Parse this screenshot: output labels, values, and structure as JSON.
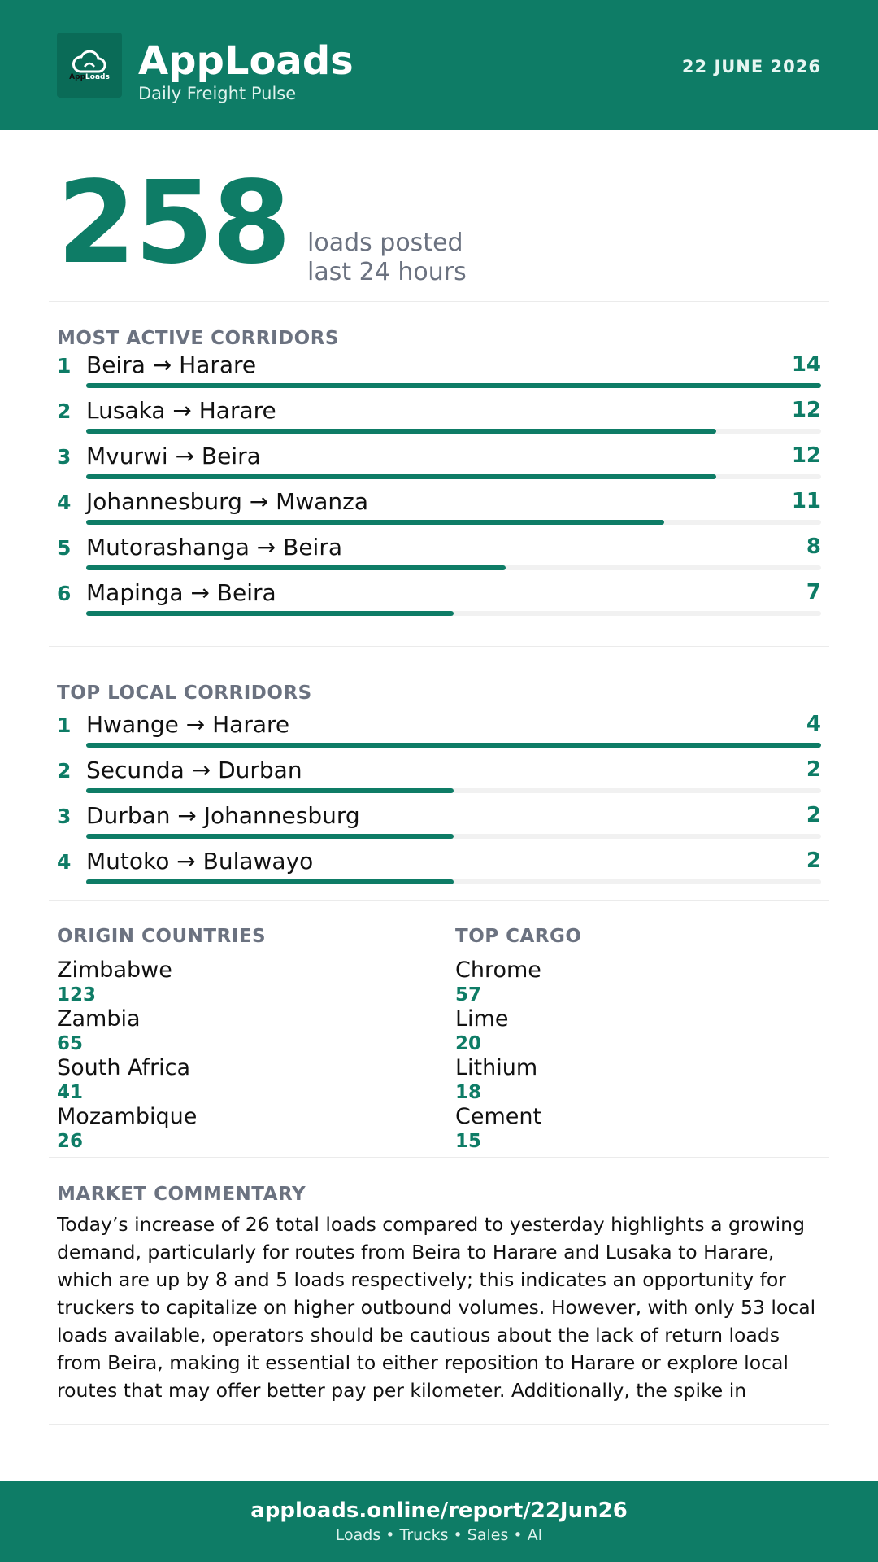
{
  "header": {
    "brand": "AppLoads",
    "subtitle": "Daily Freight Pulse",
    "date": "22 JUNE 2026",
    "logo_text_a": "App",
    "logo_text_b": "Loads",
    "logo_icon": "cloud-icon",
    "accent_color": "#0e7c66"
  },
  "hero": {
    "value": "258",
    "caption_line1": "loads posted",
    "caption_line2": "last 24 hours"
  },
  "active": {
    "title": "MOST ACTIVE CORRIDORS",
    "items": [
      {
        "rank": "1",
        "route": "Beira → Harare",
        "count": "14",
        "share": 1.0
      },
      {
        "rank": "2",
        "route": "Lusaka → Harare",
        "count": "12",
        "share": 0.857
      },
      {
        "rank": "3",
        "route": "Mvurwi → Beira",
        "count": "12",
        "share": 0.857
      },
      {
        "rank": "4",
        "route": "Johannesburg → Mwanza",
        "count": "11",
        "share": 0.786
      },
      {
        "rank": "5",
        "route": "Mutorashanga → Beira",
        "count": "8",
        "share": 0.571
      },
      {
        "rank": "6",
        "route": "Mapinga → Beira",
        "count": "7",
        "share": 0.5
      }
    ]
  },
  "local": {
    "title": "TOP LOCAL CORRIDORS",
    "items": [
      {
        "rank": "1",
        "route": "Hwange → Harare",
        "count": "4",
        "share": 1.0
      },
      {
        "rank": "2",
        "route": "Secunda → Durban",
        "count": "2",
        "share": 0.5
      },
      {
        "rank": "3",
        "route": "Durban → Johannesburg",
        "count": "2",
        "share": 0.5
      },
      {
        "rank": "4",
        "route": "Mutoko → Bulawayo",
        "count": "2",
        "share": 0.5
      }
    ]
  },
  "origins": {
    "title": "ORIGIN COUNTRIES",
    "items": [
      {
        "label": "Zimbabwe",
        "value": "123"
      },
      {
        "label": "Zambia",
        "value": "65"
      },
      {
        "label": "South Africa",
        "value": "41"
      },
      {
        "label": "Mozambique",
        "value": "26"
      }
    ]
  },
  "cargo": {
    "title": "TOP CARGO",
    "items": [
      {
        "label": "Chrome",
        "value": "57"
      },
      {
        "label": "Lime",
        "value": "20"
      },
      {
        "label": "Lithium",
        "value": "18"
      },
      {
        "label": "Cement",
        "value": "15"
      }
    ]
  },
  "commentary": {
    "title": "MARKET COMMENTARY",
    "text": "Today’s increase of 26 total loads compared to yesterday highlights a growing demand, particularly for routes from Beira to Harare and Lusaka to Harare, which are up by 8 and 5 loads respectively; this indicates an opportunity for truckers to capitalize on higher outbound volumes. However, with only 53 local loads available, operators should be cautious about the lack of return loads from Beira, making it essential to either reposition to Harare or explore local routes that may offer better pay per kilometer. Additionally, the spike in"
  },
  "footer": {
    "url": "apploads.online/report/22Jun26",
    "tagline": "Loads • Trucks • Sales • AI"
  }
}
